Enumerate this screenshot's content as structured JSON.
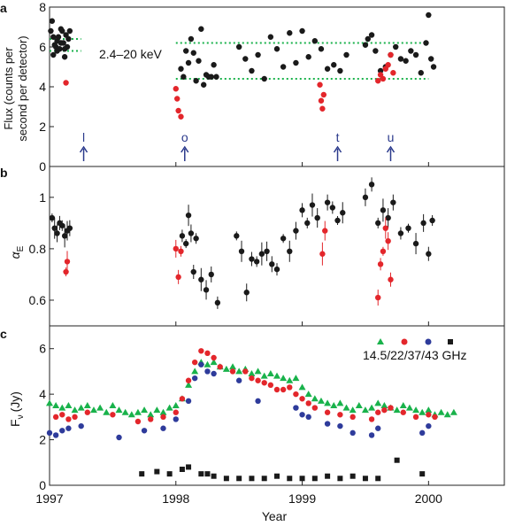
{
  "colors": {
    "black": "#1a1a1a",
    "red": "#e3262b",
    "green": "#19b24b",
    "blue": "#2e3b9b",
    "arrow": "#2b3a8c",
    "dotted": "#19b24b"
  },
  "chart_data": [
    {
      "panel": "a",
      "type": "scatter",
      "ylabel": "Flux (counts per second per detector)",
      "ylabel_lines": [
        "Flux (counts per",
        "second per detector)"
      ],
      "annotation": "2.4–20 keV",
      "xlim": [
        1997.0,
        2000.6
      ],
      "ylim": [
        0,
        8
      ],
      "yticks": [
        "0",
        "2",
        "4",
        "6",
        "8"
      ],
      "hlines": [
        {
          "x": [
            1997.0,
            1997.25
          ],
          "y": 6.4
        },
        {
          "x": [
            1997.0,
            1997.25
          ],
          "y": 5.8
        },
        {
          "x": [
            1998.0,
            2000.0
          ],
          "y": 6.2
        },
        {
          "x": [
            1998.0,
            2000.0
          ],
          "y": 4.4
        }
      ],
      "markers": [
        {
          "label": "l",
          "x": 1997.27
        },
        {
          "label": "o",
          "x": 1998.07
        },
        {
          "label": "t",
          "x": 1999.28
        },
        {
          "label": "u",
          "x": 1999.7
        }
      ],
      "series": [
        {
          "color": "black",
          "x": [
            1997.01,
            1997.02,
            1997.03,
            1997.04,
            1997.05,
            1997.06,
            1997.07,
            1997.08,
            1997.09,
            1997.1,
            1997.11,
            1997.12,
            1997.13,
            1997.14,
            1997.15,
            1997.16,
            1997.03,
            1997.06,
            1997.09,
            1997.12,
            1998.04,
            1998.06,
            1998.08,
            1998.1,
            1998.12,
            1998.14,
            1998.16,
            1998.18,
            1998.2,
            1998.22,
            1998.24,
            1998.26,
            1998.28,
            1998.3,
            1998.32,
            1998.5,
            1998.55,
            1998.6,
            1998.65,
            1998.7,
            1998.75,
            1998.8,
            1998.85,
            1998.9,
            1998.95,
            1999.0,
            1999.05,
            1999.1,
            1999.15,
            1999.2,
            1999.25,
            1999.3,
            1999.35,
            1999.5,
            1999.52,
            1999.55,
            1999.58,
            1999.62,
            1999.66,
            1999.7,
            1999.74,
            1999.78,
            1999.82,
            1999.86,
            1999.9,
            1999.94,
            1999.98,
            2000.0,
            2000.02,
            2000.04
          ],
          "y": [
            6.8,
            7.3,
            6.5,
            6.1,
            6.0,
            6.3,
            6.5,
            5.9,
            6.2,
            6.8,
            6.2,
            5.9,
            6.6,
            6.0,
            6.4,
            6.8,
            5.6,
            5.8,
            6.9,
            5.5,
            4.9,
            4.5,
            5.8,
            5.2,
            6.4,
            5.7,
            4.3,
            5.3,
            6.9,
            4.1,
            4.6,
            4.5,
            4.5,
            5.1,
            4.5,
            6.0,
            5.4,
            4.8,
            5.6,
            4.4,
            6.5,
            5.9,
            5.0,
            6.7,
            5.2,
            6.8,
            5.5,
            6.3,
            5.9,
            4.9,
            5.1,
            4.8,
            5.6,
            6.1,
            6.4,
            6.6,
            5.8,
            4.8,
            5.0,
            5.6,
            6.0,
            5.4,
            5.3,
            5.8,
            5.6,
            4.7,
            6.2,
            7.6,
            5.4,
            5.0
          ]
        },
        {
          "color": "red",
          "x": [
            1997.13,
            1998.0,
            1998.01,
            1998.02,
            1998.04,
            1999.14,
            1999.15,
            1999.16,
            1999.17,
            1999.6,
            1999.62,
            1999.64,
            1999.66,
            1999.68,
            1999.7,
            1999.72
          ],
          "y": [
            4.2,
            3.9,
            3.4,
            2.8,
            2.5,
            4.1,
            3.3,
            2.9,
            3.6,
            4.3,
            4.6,
            4.4,
            4.9,
            5.1,
            5.6,
            4.7
          ]
        }
      ]
    },
    {
      "panel": "b",
      "type": "scatter",
      "ylabel": "αE",
      "ylabel_main": "α",
      "ylabel_sub": "E",
      "xlim": [
        1997.0,
        2000.6
      ],
      "ylim": [
        0.5,
        1.12
      ],
      "yticks": [
        "0.6",
        "0.8",
        "1"
      ],
      "series": [
        {
          "color": "black",
          "x": [
            1997.02,
            1997.04,
            1997.06,
            1997.08,
            1997.1,
            1997.12,
            1997.14,
            1997.16,
            1998.05,
            1998.08,
            1998.1,
            1998.12,
            1998.14,
            1998.16,
            1998.2,
            1998.24,
            1998.28,
            1998.33,
            1998.48,
            1998.52,
            1998.56,
            1998.6,
            1998.64,
            1998.68,
            1998.72,
            1998.76,
            1998.8,
            1998.85,
            1998.9,
            1998.95,
            1999.0,
            1999.04,
            1999.08,
            1999.12,
            1999.2,
            1999.24,
            1999.28,
            1999.32,
            1999.5,
            1999.55,
            1999.6,
            1999.64,
            1999.68,
            1999.72,
            1999.78,
            1999.84,
            1999.9,
            1999.96,
            2000.0,
            2000.03
          ],
          "y": [
            0.92,
            0.88,
            0.86,
            0.9,
            0.89,
            0.85,
            0.87,
            0.88,
            0.85,
            0.82,
            0.93,
            0.86,
            0.71,
            0.84,
            0.68,
            0.64,
            0.7,
            0.59,
            0.85,
            0.79,
            0.63,
            0.76,
            0.75,
            0.78,
            0.79,
            0.74,
            0.72,
            0.84,
            0.79,
            0.87,
            0.95,
            0.9,
            0.97,
            0.92,
            0.98,
            0.96,
            0.91,
            0.94,
            1.0,
            1.05,
            0.9,
            0.95,
            0.92,
            0.98,
            0.86,
            0.88,
            0.82,
            0.9,
            0.78,
            0.91
          ]
        },
        {
          "color": "red",
          "x": [
            1997.13,
            1997.14,
            1998.0,
            1998.02,
            1998.04,
            1999.16,
            1999.18,
            1999.6,
            1999.62,
            1999.64,
            1999.66,
            1999.68,
            1999.7
          ],
          "y": [
            0.71,
            0.75,
            0.8,
            0.69,
            0.79,
            0.78,
            0.87,
            0.61,
            0.74,
            0.79,
            0.88,
            0.83,
            0.68
          ]
        }
      ]
    },
    {
      "panel": "c",
      "type": "scatter",
      "ylabel": "Fν (Jy)",
      "ylabel_main": "F",
      "ylabel_sub": "ν",
      "ylabel_unit": "(Jy)",
      "xlabel": "Year",
      "xlim": [
        1997.0,
        2000.6
      ],
      "ylim": [
        0,
        7
      ],
      "yticks": [
        "0",
        "2",
        "4",
        "6"
      ],
      "xticks": [
        "1997",
        "1998",
        "1999",
        "2000"
      ],
      "legend_text": "14.5/22/37/43 GHz",
      "series": [
        {
          "color": "green",
          "marker": "triangle",
          "x": [
            1997.0,
            1997.05,
            1997.1,
            1997.15,
            1997.2,
            1997.25,
            1997.3,
            1997.35,
            1997.4,
            1997.45,
            1997.5,
            1997.55,
            1997.6,
            1997.65,
            1997.7,
            1997.75,
            1997.8,
            1997.85,
            1997.9,
            1997.95,
            1998.0,
            1998.05,
            1998.1,
            1998.15,
            1998.2,
            1998.25,
            1998.3,
            1998.35,
            1998.4,
            1998.45,
            1998.5,
            1998.55,
            1998.6,
            1998.65,
            1998.7,
            1998.75,
            1998.8,
            1998.85,
            1998.9,
            1998.95,
            1999.0,
            1999.05,
            1999.1,
            1999.15,
            1999.2,
            1999.25,
            1999.3,
            1999.35,
            1999.4,
            1999.45,
            1999.5,
            1999.55,
            1999.6,
            1999.65,
            1999.7,
            1999.75,
            1999.8,
            1999.85,
            1999.9,
            1999.95,
            2000.0,
            2000.05,
            2000.1,
            2000.15,
            2000.2
          ],
          "y": [
            3.6,
            3.5,
            3.4,
            3.5,
            3.3,
            3.4,
            3.5,
            3.3,
            3.4,
            3.2,
            3.5,
            3.3,
            3.2,
            3.1,
            3.2,
            3.3,
            3.1,
            3.3,
            3.2,
            3.4,
            3.5,
            3.8,
            4.4,
            5.0,
            5.4,
            5.3,
            5.4,
            5.2,
            5.1,
            5.2,
            5.0,
            5.1,
            4.9,
            5.0,
            4.8,
            4.9,
            4.8,
            4.7,
            4.6,
            4.7,
            4.3,
            4.0,
            3.8,
            3.7,
            3.6,
            3.5,
            3.6,
            3.4,
            3.3,
            3.5,
            3.3,
            3.4,
            3.6,
            3.5,
            3.4,
            3.3,
            3.5,
            3.4,
            3.3,
            3.2,
            3.3,
            3.1,
            3.2,
            3.1,
            3.2
          ]
        },
        {
          "color": "red",
          "marker": "circle",
          "x": [
            1997.05,
            1997.1,
            1997.15,
            1997.2,
            1997.3,
            1997.5,
            1997.7,
            1997.8,
            1997.9,
            1998.0,
            1998.05,
            1998.1,
            1998.15,
            1998.2,
            1998.25,
            1998.3,
            1998.35,
            1998.45,
            1998.55,
            1998.6,
            1998.65,
            1998.7,
            1998.75,
            1998.8,
            1998.85,
            1998.9,
            1998.95,
            1999.0,
            1999.05,
            1999.1,
            1999.2,
            1999.3,
            1999.4,
            1999.55,
            1999.6,
            1999.65,
            1999.7,
            1999.8,
            1999.9,
            2000.0,
            2000.05
          ],
          "y": [
            3.0,
            3.1,
            2.9,
            3.0,
            3.2,
            3.1,
            2.8,
            2.9,
            3.0,
            3.2,
            3.8,
            4.6,
            5.4,
            5.9,
            5.8,
            5.6,
            5.2,
            5.0,
            5.0,
            4.7,
            4.6,
            4.5,
            4.4,
            4.2,
            4.2,
            4.3,
            4.0,
            3.8,
            3.6,
            3.4,
            3.2,
            3.1,
            3.0,
            2.9,
            3.2,
            3.3,
            3.4,
            3.2,
            3.0,
            3.1,
            3.0
          ]
        },
        {
          "color": "blue",
          "marker": "circle",
          "x": [
            1997.0,
            1997.05,
            1997.1,
            1997.15,
            1997.25,
            1997.55,
            1997.75,
            1997.9,
            1998.0,
            1998.1,
            1998.15,
            1998.2,
            1998.25,
            1998.3,
            1998.5,
            1998.65,
            1998.95,
            1999.0,
            1999.05,
            1999.2,
            1999.3,
            1999.4,
            1999.55,
            1999.6,
            1999.95,
            2000.0
          ],
          "y": [
            2.3,
            2.2,
            2.4,
            2.5,
            2.6,
            2.1,
            2.4,
            2.5,
            2.9,
            3.7,
            4.7,
            5.3,
            5.0,
            4.9,
            4.6,
            3.7,
            3.4,
            3.1,
            3.0,
            2.7,
            2.6,
            2.3,
            2.2,
            2.5,
            2.3,
            2.6
          ]
        },
        {
          "color": "black",
          "marker": "square",
          "x": [
            1997.73,
            1997.85,
            1997.95,
            1998.05,
            1998.1,
            1998.2,
            1998.25,
            1998.3,
            1998.4,
            1998.5,
            1998.6,
            1998.7,
            1998.8,
            1998.9,
            1999.0,
            1999.1,
            1999.2,
            1999.3,
            1999.4,
            1999.5,
            1999.6,
            1999.75,
            1999.95
          ],
          "y": [
            0.5,
            0.6,
            0.5,
            0.7,
            0.8,
            0.5,
            0.5,
            0.4,
            0.3,
            0.3,
            0.3,
            0.3,
            0.4,
            0.3,
            0.3,
            0.3,
            0.4,
            0.3,
            0.4,
            0.3,
            0.3,
            1.1,
            0.5
          ]
        }
      ]
    }
  ]
}
